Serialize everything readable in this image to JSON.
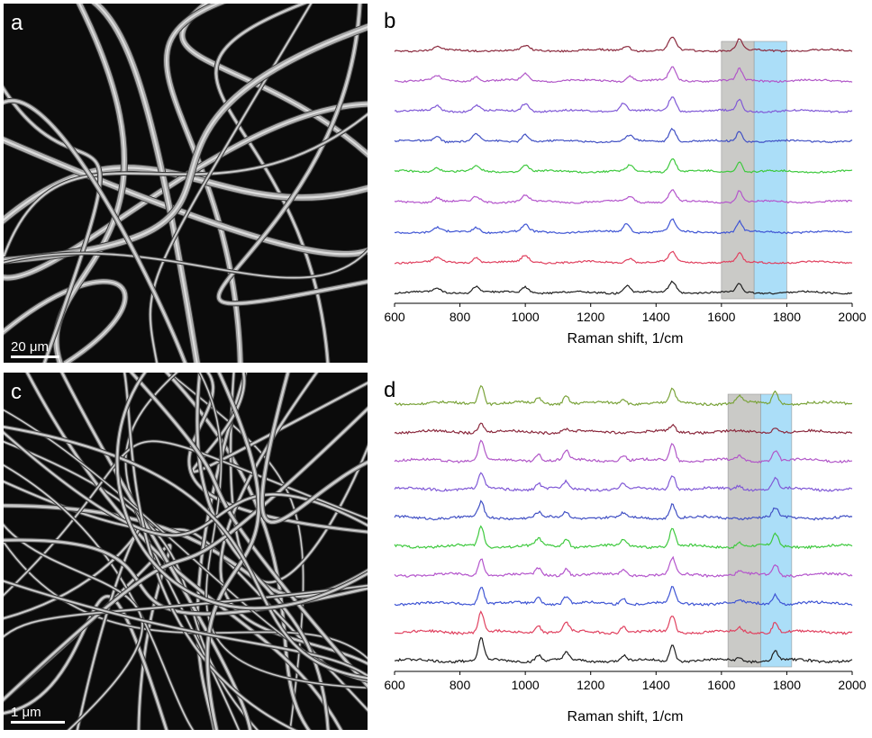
{
  "panels": {
    "a": {
      "label": "a",
      "scale": "20 μm"
    },
    "b": {
      "label": "b"
    },
    "c": {
      "label": "c",
      "scale": "1 μm"
    },
    "d": {
      "label": "d"
    }
  },
  "chart_data": [
    {
      "type": "line",
      "panel": "b",
      "title": "",
      "xlabel": "Raman shift, 1/cm",
      "ylabel": "",
      "xlim": [
        600,
        2000
      ],
      "xticks": [
        600,
        800,
        1000,
        1200,
        1400,
        1600,
        1800,
        2000
      ],
      "grid": false,
      "highlight_bands": [
        {
          "from": 1600,
          "to": 1700,
          "color": "#b8b8b4"
        },
        {
          "from": 1700,
          "to": 1800,
          "color": "#8fd3f5"
        }
      ],
      "series": [
        {
          "color": "#8b2a3e",
          "peaks": [
            [
              730,
              0.25
            ],
            [
              1000,
              0.3
            ],
            [
              1310,
              0.35
            ],
            [
              1450,
              0.9
            ],
            [
              1655,
              0.8
            ]
          ]
        },
        {
          "color": "#b157c8",
          "peaks": [
            [
              730,
              0.3
            ],
            [
              850,
              0.3
            ],
            [
              1000,
              0.5
            ],
            [
              1320,
              0.35
            ],
            [
              1450,
              0.9
            ],
            [
              1655,
              0.8
            ]
          ]
        },
        {
          "color": "#8059d6",
          "peaks": [
            [
              730,
              0.35
            ],
            [
              850,
              0.4
            ],
            [
              1000,
              0.55
            ],
            [
              1300,
              0.55
            ],
            [
              1450,
              1.0
            ],
            [
              1655,
              0.8
            ]
          ]
        },
        {
          "color": "#4150c4",
          "peaks": [
            [
              730,
              0.35
            ],
            [
              850,
              0.45
            ],
            [
              1000,
              0.5
            ],
            [
              1320,
              0.4
            ],
            [
              1450,
              0.9
            ],
            [
              1655,
              0.75
            ]
          ]
        },
        {
          "color": "#3ec93e",
          "peaks": [
            [
              730,
              0.3
            ],
            [
              850,
              0.35
            ],
            [
              1000,
              0.45
            ],
            [
              1320,
              0.4
            ],
            [
              1450,
              0.9
            ],
            [
              1655,
              0.7
            ]
          ]
        },
        {
          "color": "#b455cc",
          "peaks": [
            [
              730,
              0.3
            ],
            [
              850,
              0.35
            ],
            [
              1000,
              0.45
            ],
            [
              1320,
              0.35
            ],
            [
              1450,
              0.85
            ],
            [
              1655,
              0.8
            ]
          ]
        },
        {
          "color": "#3f55d4",
          "peaks": [
            [
              730,
              0.3
            ],
            [
              850,
              0.35
            ],
            [
              1000,
              0.45
            ],
            [
              1310,
              0.6
            ],
            [
              1450,
              0.8
            ],
            [
              1655,
              0.7
            ]
          ]
        },
        {
          "color": "#e0415f",
          "peaks": [
            [
              730,
              0.3
            ],
            [
              850,
              0.35
            ],
            [
              1000,
              0.45
            ],
            [
              1320,
              0.3
            ],
            [
              1450,
              0.7
            ],
            [
              1655,
              0.6
            ]
          ]
        },
        {
          "color": "#1e1e1e",
          "peaks": [
            [
              730,
              0.3
            ],
            [
              850,
              0.45
            ],
            [
              1000,
              0.4
            ],
            [
              1310,
              0.5
            ],
            [
              1450,
              0.75
            ],
            [
              1655,
              0.6
            ]
          ]
        }
      ]
    },
    {
      "type": "line",
      "panel": "d",
      "title": "",
      "xlabel": "Raman shift, 1/cm",
      "ylabel": "",
      "xlim": [
        600,
        2000
      ],
      "xticks": [
        600,
        800,
        1000,
        1200,
        1400,
        1600,
        1800,
        2000
      ],
      "grid": false,
      "highlight_bands": [
        {
          "from": 1620,
          "to": 1720,
          "color": "#b8b8b4"
        },
        {
          "from": 1720,
          "to": 1815,
          "color": "#8fd3f5"
        }
      ],
      "series": [
        {
          "color": "#7aa33a",
          "peaks": [
            [
              865,
              1.0
            ],
            [
              1040,
              0.25
            ],
            [
              1125,
              0.4
            ],
            [
              1300,
              0.25
            ],
            [
              1450,
              0.7
            ],
            [
              1655,
              0.35
            ],
            [
              1765,
              0.6
            ]
          ]
        },
        {
          "color": "#8b2a3e",
          "peaks": [
            [
              865,
              0.45
            ],
            [
              1125,
              0.15
            ],
            [
              1450,
              0.3
            ],
            [
              1765,
              0.25
            ]
          ]
        },
        {
          "color": "#b157c8",
          "peaks": [
            [
              865,
              1.0
            ],
            [
              1040,
              0.35
            ],
            [
              1125,
              0.45
            ],
            [
              1300,
              0.3
            ],
            [
              1450,
              0.85
            ],
            [
              1655,
              0.2
            ],
            [
              1765,
              0.55
            ]
          ]
        },
        {
          "color": "#8059d6",
          "peaks": [
            [
              865,
              0.8
            ],
            [
              1040,
              0.3
            ],
            [
              1125,
              0.35
            ],
            [
              1300,
              0.25
            ],
            [
              1450,
              0.75
            ],
            [
              1655,
              0.2
            ],
            [
              1765,
              0.55
            ]
          ]
        },
        {
          "color": "#4150c4",
          "peaks": [
            [
              865,
              0.75
            ],
            [
              1040,
              0.25
            ],
            [
              1125,
              0.3
            ],
            [
              1300,
              0.2
            ],
            [
              1450,
              0.7
            ],
            [
              1765,
              0.45
            ]
          ]
        },
        {
          "color": "#3ec93e",
          "peaks": [
            [
              865,
              1.0
            ],
            [
              1040,
              0.35
            ],
            [
              1125,
              0.4
            ],
            [
              1300,
              0.3
            ],
            [
              1450,
              0.9
            ],
            [
              1655,
              0.2
            ],
            [
              1765,
              0.6
            ]
          ]
        },
        {
          "color": "#b455cc",
          "peaks": [
            [
              865,
              0.85
            ],
            [
              1040,
              0.3
            ],
            [
              1125,
              0.35
            ],
            [
              1300,
              0.25
            ],
            [
              1450,
              0.8
            ],
            [
              1655,
              0.15
            ],
            [
              1765,
              0.55
            ]
          ]
        },
        {
          "color": "#3f55d4",
          "peaks": [
            [
              865,
              0.9
            ],
            [
              1040,
              0.3
            ],
            [
              1125,
              0.35
            ],
            [
              1300,
              0.3
            ],
            [
              1450,
              0.8
            ],
            [
              1655,
              0.15
            ],
            [
              1765,
              0.5
            ]
          ]
        },
        {
          "color": "#e0415f",
          "peaks": [
            [
              865,
              1.0
            ],
            [
              1040,
              0.35
            ],
            [
              1125,
              0.45
            ],
            [
              1300,
              0.3
            ],
            [
              1450,
              0.85
            ],
            [
              1655,
              0.2
            ],
            [
              1765,
              0.55
            ]
          ]
        },
        {
          "color": "#1e1e1e",
          "peaks": [
            [
              865,
              1.1
            ],
            [
              1040,
              0.3
            ],
            [
              1125,
              0.35
            ],
            [
              1300,
              0.25
            ],
            [
              1450,
              0.8
            ],
            [
              1655,
              0.15
            ],
            [
              1765,
              0.45
            ]
          ]
        }
      ]
    }
  ]
}
